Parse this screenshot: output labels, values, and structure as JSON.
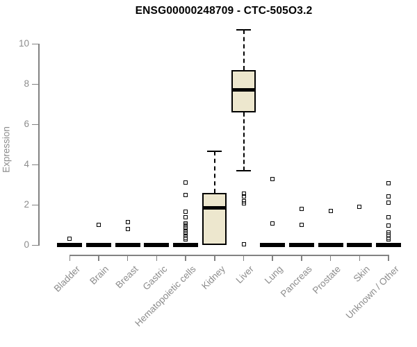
{
  "chart_data": {
    "type": "boxplot",
    "title": "ENSG00000248709 - CTC-505O3.2",
    "ylabel": "Expression",
    "xlabel": "",
    "ylim": [
      0,
      10.7
    ],
    "yticks": [
      0,
      2,
      4,
      6,
      8,
      10
    ],
    "grid": false,
    "legend": false,
    "categories": [
      "Bladder",
      "Brain",
      "Breast",
      "Gastric",
      "Hematopoietic cells",
      "Kidney",
      "Liver",
      "Lung",
      "Pancreas",
      "Prostate",
      "Skin",
      "Unknown / Other"
    ],
    "series": [
      {
        "category": "Bladder",
        "low": 0,
        "q1": 0,
        "median": 0,
        "q3": 0,
        "high": 0,
        "outliers": [
          0.3
        ]
      },
      {
        "category": "Brain",
        "low": 0,
        "q1": 0,
        "median": 0,
        "q3": 0,
        "high": 0,
        "outliers": [
          1.0
        ]
      },
      {
        "category": "Breast",
        "low": 0,
        "q1": 0,
        "median": 0,
        "q3": 0,
        "high": 0,
        "outliers": [
          1.15,
          0.78
        ]
      },
      {
        "category": "Gastric",
        "low": 0,
        "q1": 0,
        "median": 0,
        "q3": 0,
        "high": 0,
        "outliers": []
      },
      {
        "category": "Hematopoietic cells",
        "low": 0,
        "q1": 0,
        "median": 0,
        "q3": 0,
        "high": 0,
        "outliers": [
          3.11,
          2.48,
          1.66,
          1.37,
          1.08,
          1.0,
          0.92,
          0.84,
          0.76,
          0.68,
          0.6,
          0.52,
          0.44,
          0.36,
          0.28
        ]
      },
      {
        "category": "Kidney",
        "low": 0,
        "q1": 0,
        "median": 1.83,
        "q3": 2.6,
        "high": 4.67,
        "outliers": []
      },
      {
        "category": "Liver",
        "low": 3.7,
        "q1": 6.6,
        "median": 7.72,
        "q3": 8.7,
        "high": 10.7,
        "outliers": [
          2.55,
          2.4,
          2.17,
          2.08,
          0.03
        ]
      },
      {
        "category": "Lung",
        "low": 0,
        "q1": 0,
        "median": 0,
        "q3": 0,
        "high": 0,
        "outliers": [
          3.29,
          1.08
        ]
      },
      {
        "category": "Pancreas",
        "low": 0,
        "q1": 0,
        "median": 0,
        "q3": 0,
        "high": 0,
        "outliers": [
          1.8,
          0.99
        ]
      },
      {
        "category": "Prostate",
        "low": 0,
        "q1": 0,
        "median": 0,
        "q3": 0,
        "high": 0,
        "outliers": [
          1.7
        ]
      },
      {
        "category": "Skin",
        "low": 0,
        "q1": 0,
        "median": 0,
        "q3": 0,
        "high": 0,
        "outliers": [
          1.91
        ]
      },
      {
        "category": "Unknown / Other",
        "low": 0,
        "q1": 0,
        "median": 0,
        "q3": 0,
        "high": 0,
        "outliers": [
          3.06,
          2.4,
          2.11,
          1.37,
          0.97,
          0.62,
          0.53,
          0.44,
          0.35,
          0.26
        ]
      }
    ],
    "colors": {
      "box_fill": "#EDE7CE",
      "box_border": "#000000",
      "median": "#000000",
      "axis": "#828282",
      "tick_label": "#8C8C8C",
      "title": "#000000",
      "background": "#FFFFFF"
    }
  }
}
